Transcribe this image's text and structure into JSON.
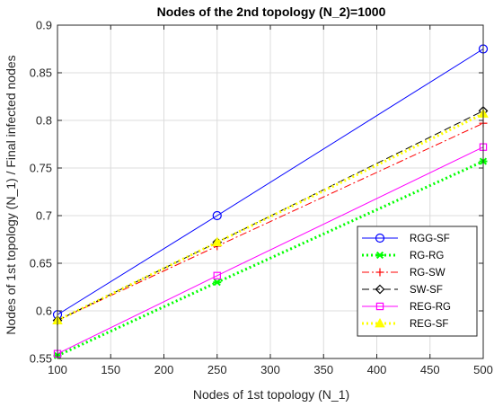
{
  "chart_data": {
    "type": "line",
    "title": "Nodes of the 2nd topology (N_2)=1000",
    "xlabel": "Nodes of 1st topology (N_1)",
    "ylabel": "Nodes of 1st topology (N_1) / Final infected nodes",
    "xlim": [
      100,
      500
    ],
    "ylim": [
      0.55,
      0.9
    ],
    "xticks": [
      100,
      150,
      200,
      250,
      300,
      350,
      400,
      450,
      500
    ],
    "yticks": [
      0.55,
      0.6,
      0.65,
      0.7,
      0.75,
      0.8,
      0.85,
      0.9
    ],
    "ytick_labels": [
      "0.55",
      "0.6",
      "0.65",
      "0.7",
      "0.75",
      "0.8",
      "0.85",
      "0.9"
    ],
    "grid": true,
    "legend_position": "lower-right",
    "x": [
      100,
      250,
      500
    ],
    "series": [
      {
        "name": "RGG-SF",
        "values": [
          0.596,
          0.7,
          0.875
        ],
        "color": "#0000ff",
        "dash": "solid",
        "marker": "circle",
        "width": 1
      },
      {
        "name": "RG-RG",
        "values": [
          0.553,
          0.63,
          0.757
        ],
        "color": "#00ff00",
        "dash": "dotted",
        "marker": "asterisk",
        "width": 3
      },
      {
        "name": "RG-SW",
        "values": [
          0.59,
          0.668,
          0.797
        ],
        "color": "#ff0000",
        "dash": "dashdot",
        "marker": "plus",
        "width": 1
      },
      {
        "name": "SW-SF",
        "values": [
          0.59,
          0.672,
          0.81
        ],
        "color": "#000000",
        "dash": "dashed",
        "marker": "diamond",
        "width": 1
      },
      {
        "name": "REG-RG",
        "values": [
          0.555,
          0.637,
          0.772
        ],
        "color": "#ff00ff",
        "dash": "solid",
        "marker": "square",
        "width": 1
      },
      {
        "name": "REG-SF",
        "values": [
          0.59,
          0.672,
          0.807
        ],
        "color": "#ffff00",
        "dash": "dotted",
        "marker": "triangle",
        "width": 3
      }
    ]
  }
}
